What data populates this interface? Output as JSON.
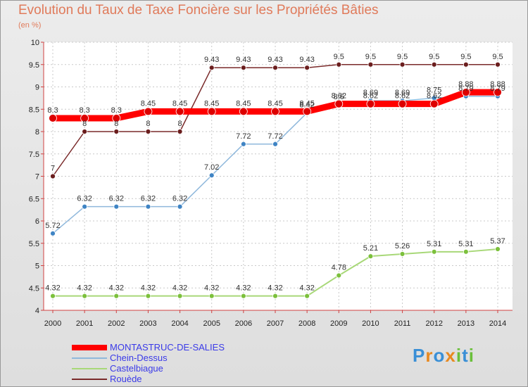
{
  "title": "Evolution du Taux de Taxe Foncière sur les Propriétés Bâties",
  "unit": "(en %)",
  "brand": {
    "letters": [
      {
        "ch": "P",
        "color": "#3a8fd6"
      },
      {
        "ch": "r",
        "color": "#e8891f"
      },
      {
        "ch": "o",
        "color": "#3a8fd6"
      },
      {
        "ch": "x",
        "color": "#e8891f"
      },
      {
        "ch": "i",
        "color": "#6abf3a"
      },
      {
        "ch": "t",
        "color": "#3a8fd6"
      },
      {
        "ch": "i",
        "color": "#6abf3a"
      }
    ]
  },
  "chart_data": {
    "type": "line",
    "title": "Evolution du Taux de Taxe Foncière sur les Propriétés Bâties",
    "ylabel": "(en %)",
    "xlabel": "",
    "ylim": [
      4,
      10
    ],
    "yticks": [
      "4",
      "4.5",
      "5",
      "5.5",
      "6",
      "6.5",
      "7",
      "7.5",
      "8",
      "8.5",
      "9",
      "9.5",
      "10"
    ],
    "categories": [
      "2000",
      "2001",
      "2002",
      "2003",
      "2004",
      "2005",
      "2006",
      "2007",
      "2008",
      "2009",
      "2010",
      "2011",
      "2012",
      "2013",
      "2014"
    ],
    "series": [
      {
        "name": "Rouède",
        "color": "#7a2a2a",
        "marker": "#6b1e1e",
        "width": 1.5,
        "values": [
          7,
          8,
          8,
          8,
          8,
          9.43,
          9.43,
          9.43,
          9.43,
          9.5,
          9.5,
          9.5,
          9.5,
          9.5,
          9.5
        ],
        "labels": [
          "7",
          "8",
          "8",
          "8",
          "8",
          "9.43",
          "9.43",
          "9.43",
          "9.43",
          "9.5",
          "9.5",
          "9.5",
          "9.5",
          "9.5",
          "9.5"
        ]
      },
      {
        "name": "Castelbiague",
        "color": "#a8d878",
        "marker": "#7cc03c",
        "width": 2,
        "values": [
          4.32,
          4.32,
          4.32,
          4.32,
          4.32,
          4.32,
          4.32,
          4.32,
          4.32,
          4.78,
          5.21,
          5.26,
          5.31,
          5.31,
          5.37
        ],
        "labels": [
          "4.32",
          "4.32",
          "4.32",
          "4.32",
          "4.32",
          "4.32",
          "4.32",
          "4.32",
          "4.32",
          "4.78",
          "5.21",
          "5.26",
          "5.31",
          "5.31",
          "5.37"
        ]
      },
      {
        "name": "Chein-Dessus",
        "color": "#8fb8dc",
        "marker": "#3f84c4",
        "width": 1.5,
        "values": [
          5.72,
          6.32,
          6.32,
          6.32,
          6.32,
          7.02,
          7.72,
          7.72,
          8.42,
          8.6,
          8.69,
          8.69,
          8.75,
          8.79,
          8.79
        ],
        "labels": [
          "5.72",
          "6.32",
          "6.32",
          "6.32",
          "6.32",
          "7.02",
          "7.72",
          "7.72",
          "8.42",
          "8.6",
          "8.69",
          "8.69",
          "8.75",
          "8.79",
          "8.79"
        ]
      },
      {
        "name": "MONTASTRUC-DE-SALIES",
        "color": "#ff0000",
        "marker": "#dd0000",
        "width": 9,
        "values": [
          8.3,
          8.3,
          8.3,
          8.45,
          8.45,
          8.45,
          8.45,
          8.45,
          8.45,
          8.62,
          8.62,
          8.62,
          8.62,
          8.88,
          8.88
        ],
        "labels": [
          "8.3",
          "8.3",
          "8.3",
          "8.45",
          "8.45",
          "8.45",
          "8.45",
          "8.45",
          "8.45",
          "8.62",
          "8.62",
          "8.62",
          "8.62",
          "8.88",
          "8.88"
        ]
      }
    ],
    "legend": [
      {
        "name": "MONTASTRUC-DE-SALIES",
        "color": "#ff0000",
        "text_color": "#3a3ae8",
        "thick": 8
      },
      {
        "name": "Chein-Dessus",
        "color": "#8fb8dc",
        "text_color": "#3a3ae8",
        "thick": 2
      },
      {
        "name": "Castelbiague",
        "color": "#a8d878",
        "text_color": "#3a3ae8",
        "thick": 2
      },
      {
        "name": "Rouède",
        "color": "#7a2a2a",
        "text_color": "#3a3ae8",
        "thick": 2
      }
    ],
    "legend_position": "bottom-left"
  }
}
